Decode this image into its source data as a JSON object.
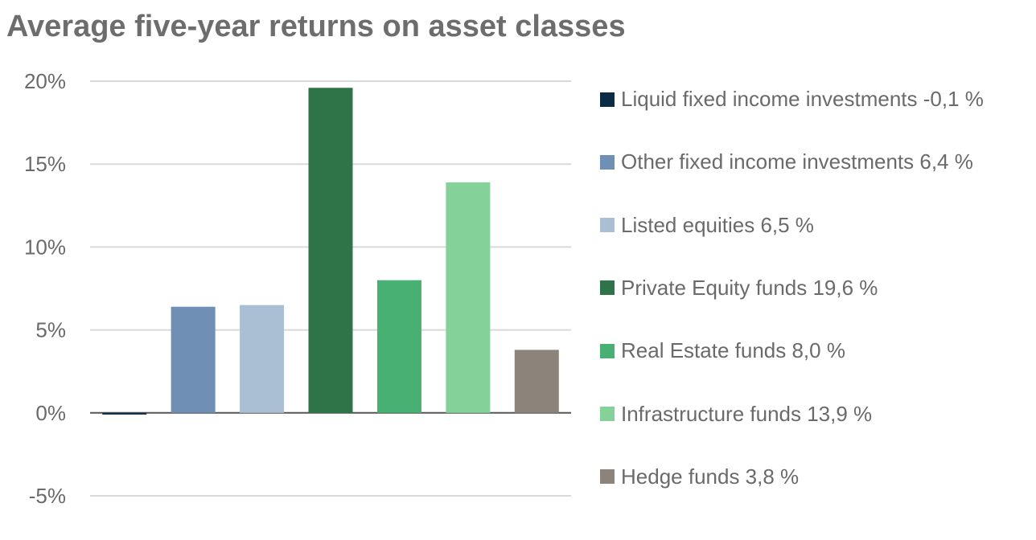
{
  "chart_data": {
    "type": "bar",
    "title": "Average five-year returns on asset classes",
    "categories": [
      "Liquid fixed income investments",
      "Other fixed income investments",
      "Listed equities",
      "Private Equity funds",
      "Real Estate funds",
      "Infrastructure funds",
      "Hedge funds"
    ],
    "values": [
      -0.1,
      6.4,
      6.5,
      19.6,
      8.0,
      13.9,
      3.8
    ],
    "colors": [
      "#0b2a45",
      "#6f90b4",
      "#abbfd4",
      "#2f7449",
      "#48b073",
      "#84d19a",
      "#8c847b"
    ],
    "legend": [
      "Liquid fixed income investments -0,1 %",
      "Other fixed income investments 6,4 %",
      "Listed equities 6,5 %",
      "Private Equity funds 19,6 %",
      "Real Estate funds 8,0 %",
      "Infrastructure funds 13,9 %",
      "Hedge funds 3,8 %"
    ],
    "y_ticks": [
      20,
      15,
      10,
      5,
      0,
      -5
    ],
    "y_tick_labels": [
      "20%",
      "15%",
      "10%",
      "5%",
      "0%",
      "-5%"
    ],
    "ylim": [
      -5,
      20
    ],
    "grid": true,
    "legend_position": "right",
    "xlabel": "",
    "ylabel": ""
  }
}
